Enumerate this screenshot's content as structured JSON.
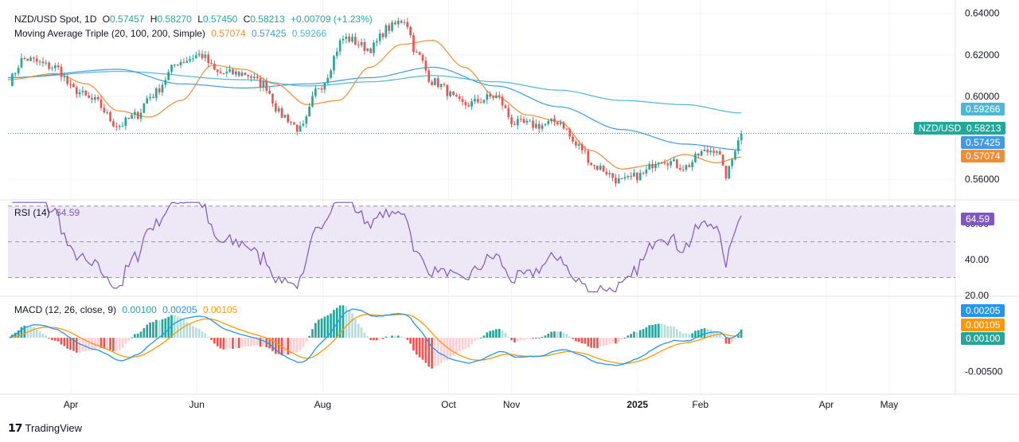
{
  "colors": {
    "up": "#26a69a",
    "down": "#ef5350",
    "ma20": "#f28d33",
    "ma100": "#3f9be6",
    "ma200": "#4bb8d6",
    "rsi": "#7e57c2",
    "rsi_fill": "#ede7f6",
    "macd": "#2196f3",
    "signal": "#ff9800",
    "hist_up_strong": "#26a69a",
    "hist_up_weak": "#b2dfdb",
    "hist_down_strong": "#ef5350",
    "hist_down_weak": "#ffcdd2",
    "last_price": "#26a69a",
    "grid": "#f0f3fa",
    "axis_text": "#131722"
  },
  "legend": {
    "symbol": "NZD/USD Spot, 1D",
    "open_label": "O",
    "open": "0.57457",
    "high_label": "H",
    "high": "0.58270",
    "low_label": "L",
    "low": "0.57450",
    "close_label": "C",
    "close": "0.58213",
    "change": "+0.00709 (+1.23%)",
    "ma_title": "Moving Average Triple (20, 100, 200, Simple)",
    "ma20": "0.57074",
    "ma100": "0.57425",
    "ma200": "0.59266",
    "rsi_title": "RSI (14)",
    "rsi_value": "64.59",
    "macd_title": "MACD (12, 26, close, 9)",
    "macd_hist": "0.00100",
    "macd_line": "0.00205",
    "macd_signal": "0.00105"
  },
  "badges": {
    "ma200": "0.59266",
    "symbol": "NZD/USD",
    "price": "0.58213",
    "ma100": "0.57425",
    "ma20": "0.57074",
    "rsi": "64.59",
    "macd_line": "0.00205",
    "macd_signal": "0.00105",
    "macd_hist": "0.00100"
  },
  "brand": "TradingView",
  "chart_data": [
    {
      "type": "candlestick",
      "title": "NZD/USD Spot, 1D",
      "ylim": [
        0.5505,
        0.6418
      ],
      "y_ticks": [
        "0.64000",
        "0.62000",
        "0.60000",
        "0.56000"
      ],
      "x_ticks": [
        "Apr",
        "Jun",
        "Aug",
        "Oct",
        "Nov",
        "2025",
        "Feb",
        "Apr",
        "May"
      ],
      "x_tick_positions": [
        0.25,
        2.25,
        4.25,
        6.25,
        7.25,
        9.25,
        10.25,
        12.25,
        13.25
      ],
      "x_range": [
        -0.75,
        14.3
      ],
      "anchors_ma200": [
        [
          -0.75,
          0.609
        ],
        [
          1,
          0.612
        ],
        [
          3,
          0.608
        ],
        [
          4,
          0.605
        ],
        [
          5,
          0.607
        ],
        [
          6,
          0.61
        ],
        [
          7,
          0.607
        ],
        [
          8,
          0.603
        ],
        [
          9,
          0.598
        ],
        [
          10,
          0.596
        ],
        [
          10.9,
          0.592
        ]
      ],
      "anchors_ma100": [
        [
          -0.75,
          0.609
        ],
        [
          1,
          0.613
        ],
        [
          2,
          0.606
        ],
        [
          3,
          0.604
        ],
        [
          4,
          0.606
        ],
        [
          5,
          0.609
        ],
        [
          6,
          0.614
        ],
        [
          7,
          0.605
        ],
        [
          8,
          0.595
        ],
        [
          9,
          0.584
        ],
        [
          10,
          0.577
        ],
        [
          10.9,
          0.5742
        ]
      ],
      "anchors_ma20": [
        [
          -0.75,
          0.608
        ],
        [
          0,
          0.611
        ],
        [
          0.5,
          0.606
        ],
        [
          1,
          0.593
        ],
        [
          1.5,
          0.59
        ],
        [
          2,
          0.598
        ],
        [
          2.5,
          0.615
        ],
        [
          3,
          0.613
        ],
        [
          3.5,
          0.606
        ],
        [
          4,
          0.596
        ],
        [
          4.5,
          0.598
        ],
        [
          5,
          0.614
        ],
        [
          5.5,
          0.625
        ],
        [
          6,
          0.627
        ],
        [
          6.5,
          0.614
        ],
        [
          7,
          0.6
        ],
        [
          7.5,
          0.591
        ],
        [
          8,
          0.588
        ],
        [
          8.5,
          0.574
        ],
        [
          9,
          0.565
        ],
        [
          9.5,
          0.567
        ],
        [
          10,
          0.572
        ],
        [
          10.5,
          0.568
        ],
        [
          10.9,
          0.5707
        ]
      ],
      "anchors_price": [
        [
          -0.75,
          0.607
        ],
        [
          -0.5,
          0.618
        ],
        [
          0,
          0.614
        ],
        [
          0.3,
          0.603
        ],
        [
          0.6,
          0.598
        ],
        [
          1,
          0.586
        ],
        [
          1.3,
          0.591
        ],
        [
          1.5,
          0.6
        ],
        [
          2,
          0.617
        ],
        [
          2.3,
          0.62
        ],
        [
          2.6,
          0.611
        ],
        [
          3,
          0.611
        ],
        [
          3.3,
          0.606
        ],
        [
          3.6,
          0.591
        ],
        [
          3.9,
          0.584
        ],
        [
          4.2,
          0.605
        ],
        [
          4.6,
          0.628
        ],
        [
          5,
          0.623
        ],
        [
          5.3,
          0.633
        ],
        [
          5.55,
          0.637
        ],
        [
          5.75,
          0.62
        ],
        [
          6,
          0.607
        ],
        [
          6.5,
          0.596
        ],
        [
          7,
          0.6
        ],
        [
          7.3,
          0.587
        ],
        [
          7.7,
          0.586
        ],
        [
          8,
          0.588
        ],
        [
          8.3,
          0.576
        ],
        [
          8.6,
          0.566
        ],
        [
          9,
          0.559
        ],
        [
          9.3,
          0.562
        ],
        [
          9.6,
          0.57
        ],
        [
          10,
          0.566
        ],
        [
          10.3,
          0.573
        ],
        [
          10.5,
          0.575
        ],
        [
          10.65,
          0.562
        ],
        [
          10.9,
          0.5821
        ]
      ]
    },
    {
      "type": "line",
      "name": "RSI (14)",
      "ylim": [
        20,
        73
      ],
      "y_ticks": [
        "60.00",
        "40.00",
        "20.00"
      ],
      "bands": [
        30,
        50,
        70
      ],
      "last": 64.59
    },
    {
      "type": "line",
      "name": "MACD (12, 26, close, 9)",
      "ylim": [
        -0.0082,
        0.006
      ],
      "y_ticks": [
        "-0.00500"
      ],
      "last_macd": 0.00205,
      "last_signal": 0.00105,
      "last_hist": 0.001
    }
  ]
}
